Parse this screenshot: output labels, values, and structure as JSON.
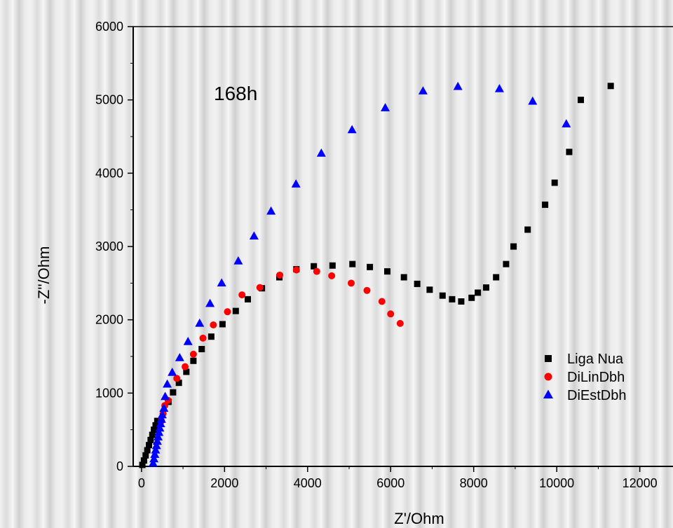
{
  "chart_data": {
    "type": "scatter",
    "annotation": "168h",
    "xlabel": "Z'/Ohm",
    "ylabel": "-Z''/Ohm",
    "xlim": [
      -200,
      12800
    ],
    "ylim": [
      0,
      6000
    ],
    "xticks": [
      0,
      2000,
      4000,
      6000,
      8000,
      10000,
      12000
    ],
    "yticks": [
      0,
      1000,
      2000,
      3000,
      4000,
      5000,
      6000
    ],
    "legend_position": "bottom-right",
    "series": [
      {
        "name": "Liga Nua",
        "marker": "square",
        "color": "#000000",
        "points": [
          [
            20,
            20
          ],
          [
            60,
            80
          ],
          [
            100,
            150
          ],
          [
            140,
            220
          ],
          [
            180,
            290
          ],
          [
            220,
            360
          ],
          [
            260,
            430
          ],
          [
            300,
            500
          ],
          [
            340,
            560
          ],
          [
            380,
            620
          ],
          [
            650,
            880
          ],
          [
            760,
            1010
          ],
          [
            900,
            1140
          ],
          [
            1080,
            1290
          ],
          [
            1250,
            1440
          ],
          [
            1450,
            1600
          ],
          [
            1680,
            1770
          ],
          [
            1950,
            1940
          ],
          [
            2270,
            2120
          ],
          [
            2560,
            2280
          ],
          [
            2900,
            2430
          ],
          [
            3320,
            2580
          ],
          [
            3730,
            2690
          ],
          [
            4150,
            2730
          ],
          [
            4600,
            2740
          ],
          [
            5080,
            2760
          ],
          [
            5500,
            2720
          ],
          [
            5920,
            2660
          ],
          [
            6320,
            2580
          ],
          [
            6640,
            2490
          ],
          [
            6940,
            2410
          ],
          [
            7250,
            2330
          ],
          [
            7480,
            2280
          ],
          [
            7700,
            2250
          ],
          [
            7950,
            2300
          ],
          [
            8100,
            2370
          ],
          [
            8300,
            2440
          ],
          [
            8540,
            2580
          ],
          [
            8780,
            2760
          ],
          [
            8960,
            3000
          ],
          [
            9300,
            3230
          ],
          [
            9720,
            3570
          ],
          [
            9950,
            3870
          ],
          [
            10300,
            4290
          ],
          [
            10580,
            5000
          ],
          [
            11300,
            5190
          ]
        ]
      },
      {
        "name": "DiLinDbh",
        "marker": "circle",
        "color": "#ff0000",
        "points": [
          [
            480,
            620
          ],
          [
            520,
            720
          ],
          [
            560,
            830
          ],
          [
            640,
            900
          ],
          [
            850,
            1200
          ],
          [
            1050,
            1360
          ],
          [
            1250,
            1530
          ],
          [
            1480,
            1750
          ],
          [
            1730,
            1930
          ],
          [
            2070,
            2110
          ],
          [
            2420,
            2340
          ],
          [
            2850,
            2440
          ],
          [
            3330,
            2610
          ],
          [
            3730,
            2680
          ],
          [
            4220,
            2660
          ],
          [
            4580,
            2600
          ],
          [
            5050,
            2500
          ],
          [
            5430,
            2400
          ],
          [
            5790,
            2250
          ],
          [
            6000,
            2080
          ],
          [
            6230,
            1950
          ]
        ]
      },
      {
        "name": "DiEstDbh",
        "marker": "triangle",
        "color": "#0000ff",
        "points": [
          [
            280,
            40
          ],
          [
            300,
            100
          ],
          [
            320,
            160
          ],
          [
            340,
            220
          ],
          [
            360,
            280
          ],
          [
            380,
            340
          ],
          [
            400,
            400
          ],
          [
            420,
            460
          ],
          [
            440,
            520
          ],
          [
            460,
            580
          ],
          [
            480,
            640
          ],
          [
            500,
            700
          ],
          [
            540,
            790
          ],
          [
            570,
            950
          ],
          [
            620,
            1120
          ],
          [
            740,
            1280
          ],
          [
            920,
            1480
          ],
          [
            1120,
            1700
          ],
          [
            1400,
            1950
          ],
          [
            1650,
            2220
          ],
          [
            1930,
            2500
          ],
          [
            2330,
            2800
          ],
          [
            2710,
            3140
          ],
          [
            3120,
            3480
          ],
          [
            3720,
            3850
          ],
          [
            4330,
            4270
          ],
          [
            5070,
            4590
          ],
          [
            5870,
            4890
          ],
          [
            6780,
            5120
          ],
          [
            7620,
            5180
          ],
          [
            8620,
            5150
          ],
          [
            9420,
            4980
          ],
          [
            10230,
            4670
          ]
        ]
      }
    ]
  }
}
